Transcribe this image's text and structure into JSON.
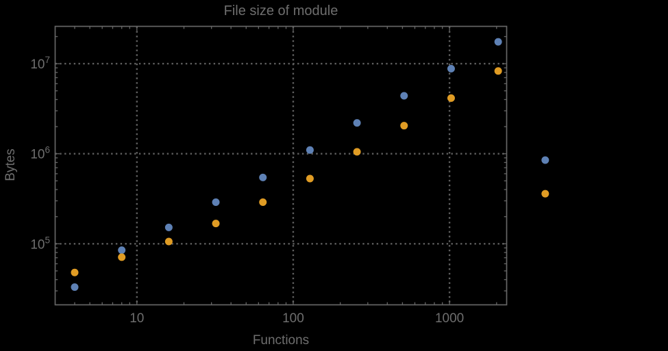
{
  "title": "File size of module",
  "colors": {
    "background": "#000000",
    "frame": "#666666",
    "grid": "#5f5f5f",
    "text": "#6e6e6e",
    "series_blue": "#5E81B5",
    "series_orange": "#E09C24"
  },
  "chart_data": {
    "type": "scatter",
    "title": "File size of module",
    "xlabel": "Functions",
    "ylabel": "Bytes",
    "xscale": "log",
    "yscale": "log",
    "xlim": [
      3,
      2320
    ],
    "ylim": [
      21000,
      26000000
    ],
    "grid": "dotted gridlines at major ticks only",
    "legend": "none",
    "frame": "full frame with inward ticks on all four edges",
    "x_ticks": {
      "values": [
        10,
        100,
        1000
      ],
      "labels": [
        "10",
        "100",
        "1000"
      ]
    },
    "y_ticks": {
      "values": [
        100000,
        1000000,
        10000000
      ],
      "base": "10",
      "exponents": [
        "5",
        "6",
        "7"
      ]
    },
    "x": [
      4,
      8,
      16,
      32,
      64,
      128,
      256,
      512,
      1024,
      2048,
      4096
    ],
    "series": [
      {
        "name": "blue",
        "color": "#5E81B5",
        "values": [
          33000,
          85000,
          152000,
          290000,
          545000,
          1100000,
          2200000,
          4400000,
          8800000,
          17500000,
          850000
        ]
      },
      {
        "name": "orange",
        "color": "#E09C24",
        "values": [
          48000,
          71000,
          106000,
          168000,
          290000,
          530000,
          1050000,
          2050000,
          4150000,
          8300000,
          360000
        ]
      }
    ],
    "note_points_outside_frame": "the pair at x=4096 is drawn beyond the right frame edge (no clipping)"
  }
}
